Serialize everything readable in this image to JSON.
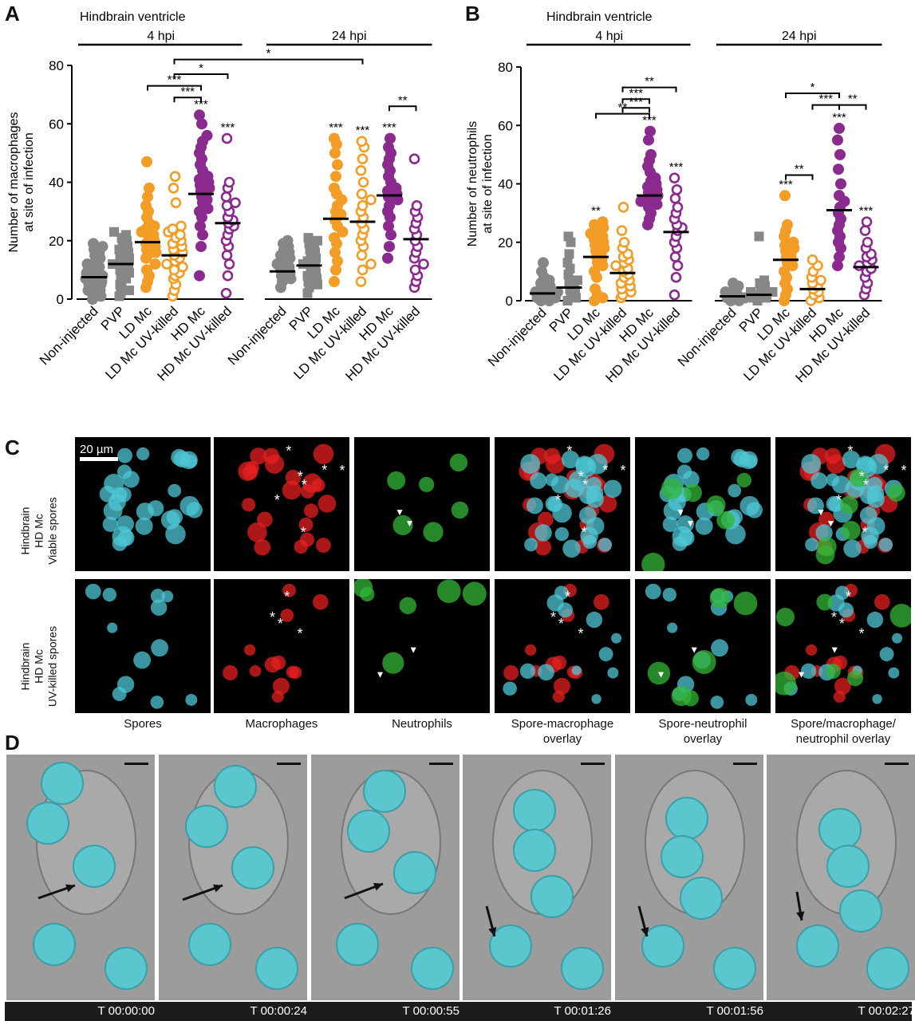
{
  "panels": {
    "a": "A",
    "b": "B",
    "c": "C",
    "d": "D"
  },
  "group_labels": {
    "hindbrain": "Hindbrain ventricle",
    "hpi4": "4 hpi",
    "hpi24": "24 hpi"
  },
  "chart_data": [
    {
      "type": "scatter",
      "panel": "A",
      "ylabel": "Number of macrophages\nat site of infection",
      "ylim": [
        0,
        80
      ],
      "yticks": [
        0,
        20,
        40,
        60,
        80
      ],
      "categories": [
        "Non-injected",
        "PVP",
        "LD Mc",
        "LD Mc UV-killed",
        "HD Mc",
        "HD Mc UV-killed",
        "Non-injected",
        "PVP",
        "LD Mc",
        "LD Mc UV-killed",
        "HD Mc",
        "HD Mc UV-killed"
      ],
      "colors": [
        "#878787",
        "#878787",
        "#f39c26",
        "#f39c26",
        "#8a2a8e",
        "#8a2a8e",
        "#878787",
        "#878787",
        "#f39c26",
        "#f39c26",
        "#8a2a8e",
        "#8a2a8e"
      ],
      "markers": [
        "circle",
        "square",
        "circle",
        "open-circle",
        "circle",
        "open-circle",
        "circle",
        "square",
        "circle",
        "open-circle",
        "circle",
        "open-circle"
      ],
      "means": [
        7.5,
        12,
        19.5,
        15,
        36,
        26,
        9.5,
        11.5,
        27.5,
        26.5,
        35.5,
        20.5
      ],
      "points": [
        [
          0,
          1,
          2,
          3,
          3,
          4,
          5,
          5,
          6,
          6,
          7,
          8,
          8,
          9,
          10,
          11,
          12,
          13,
          14,
          15,
          16,
          17,
          18,
          19
        ],
        [
          1,
          2,
          3,
          5,
          6,
          7,
          8,
          9,
          10,
          11,
          12,
          13,
          14,
          15,
          16,
          17,
          18,
          19,
          20,
          21,
          22,
          23
        ],
        [
          4,
          6,
          8,
          10,
          12,
          14,
          15,
          16,
          17,
          18,
          19,
          20,
          21,
          22,
          23,
          24,
          25,
          26,
          28,
          30,
          32,
          35,
          38,
          47
        ],
        [
          1,
          3,
          5,
          7,
          8,
          9,
          10,
          11,
          12,
          13,
          14,
          15,
          16,
          17,
          18,
          19,
          20,
          21,
          22,
          23,
          24,
          25,
          33,
          38,
          42
        ],
        [
          8,
          18,
          22,
          25,
          28,
          30,
          31,
          33,
          34,
          35,
          36,
          37,
          38,
          39,
          40,
          41,
          42,
          44,
          46,
          48,
          50,
          52,
          54,
          56,
          60,
          63
        ],
        [
          2,
          8,
          12,
          15,
          18,
          20,
          22,
          24,
          25,
          26,
          27,
          28,
          30,
          32,
          33,
          35,
          38,
          40,
          55
        ],
        [
          4,
          6,
          7,
          8,
          9,
          10,
          11,
          12,
          13,
          14,
          15,
          16,
          17,
          18,
          19,
          20
        ],
        [
          2,
          4,
          5,
          6,
          7,
          8,
          9,
          10,
          11,
          12,
          13,
          14,
          15,
          16,
          17,
          18,
          19,
          20,
          21
        ],
        [
          6,
          10,
          13,
          16,
          19,
          21,
          23,
          25,
          27,
          28,
          29,
          30,
          32,
          34,
          36,
          38,
          42,
          46,
          50,
          53,
          55
        ],
        [
          6,
          10,
          12,
          15,
          18,
          20,
          22,
          24,
          26,
          28,
          30,
          32,
          34,
          36,
          40,
          44,
          48,
          52,
          54
        ],
        [
          14,
          18,
          22,
          25,
          28,
          30,
          32,
          34,
          35,
          36,
          37,
          38,
          40,
          42,
          44,
          46,
          48,
          50,
          52,
          55
        ],
        [
          4,
          6,
          8,
          10,
          12,
          14,
          16,
          18,
          20,
          22,
          24,
          26,
          28,
          30,
          32,
          48
        ]
      ],
      "significance": [
        {
          "i": 4,
          "label": "***"
        },
        {
          "i": 5,
          "label": "***"
        },
        {
          "i": 8,
          "label": "***"
        },
        {
          "i": 9,
          "label": "***"
        },
        {
          "i": 10,
          "label": "***"
        }
      ],
      "brackets": [
        {
          "from": 2,
          "to": 4,
          "y": 73,
          "label": "***"
        },
        {
          "from": 3,
          "to": 4,
          "y": 69,
          "label": "***"
        },
        {
          "from": 3,
          "to": 5,
          "y": 77,
          "label": "*"
        },
        {
          "from": 3,
          "to": 9,
          "y": 82,
          "label": "*"
        },
        {
          "from": 10,
          "to": 11,
          "y": 66,
          "label": "**"
        }
      ]
    },
    {
      "type": "scatter",
      "panel": "B",
      "ylabel": "Number of neutrophils\nat site of infection",
      "ylim": [
        0,
        80
      ],
      "yticks": [
        0,
        20,
        40,
        60,
        80
      ],
      "categories": [
        "Non-injected",
        "PVP",
        "LD Mc",
        "LD Mc UV-killed",
        "HD Mc",
        "HD Mc UV-killed",
        "Non-injected",
        "PVP",
        "LD Mc",
        "LD Mc UV-killed",
        "HD Mc",
        "HD Mc UV-killed"
      ],
      "colors": [
        "#878787",
        "#878787",
        "#f39c26",
        "#f39c26",
        "#8a2a8e",
        "#8a2a8e",
        "#878787",
        "#878787",
        "#f39c26",
        "#f39c26",
        "#8a2a8e",
        "#8a2a8e"
      ],
      "markers": [
        "circle",
        "square",
        "circle",
        "open-circle",
        "circle",
        "open-circle",
        "circle",
        "square",
        "circle",
        "open-circle",
        "circle",
        "open-circle"
      ],
      "means": [
        2.5,
        4.5,
        15,
        9.5,
        36,
        23.5,
        1.5,
        2,
        14,
        4,
        31,
        11.5
      ],
      "points": [
        [
          0,
          0,
          1,
          1,
          2,
          2,
          3,
          3,
          4,
          5,
          6,
          7,
          8,
          10,
          13
        ],
        [
          0,
          1,
          2,
          3,
          4,
          5,
          6,
          7,
          9,
          11,
          13,
          16,
          20,
          22
        ],
        [
          0,
          1,
          2,
          4,
          8,
          10,
          12,
          13,
          14,
          15,
          16,
          17,
          18,
          19,
          20,
          21,
          22,
          23,
          24,
          25,
          26,
          27
        ],
        [
          1,
          2,
          3,
          4,
          5,
          6,
          7,
          8,
          9,
          10,
          11,
          12,
          13,
          14,
          15,
          16,
          18,
          20,
          24,
          32
        ],
        [
          26,
          28,
          30,
          32,
          33,
          34,
          35,
          36,
          37,
          38,
          39,
          40,
          41,
          42,
          44,
          46,
          48,
          50,
          55,
          58
        ],
        [
          2,
          8,
          12,
          15,
          18,
          20,
          22,
          24,
          25,
          26,
          28,
          30,
          32,
          35,
          38,
          42
        ],
        [
          0,
          0,
          1,
          1,
          2,
          2,
          3,
          4,
          5,
          6
        ],
        [
          0,
          1,
          1,
          2,
          2,
          3,
          3,
          4,
          5,
          6,
          7,
          22
        ],
        [
          0,
          2,
          4,
          6,
          8,
          10,
          12,
          13,
          14,
          15,
          16,
          17,
          18,
          19,
          20,
          22,
          24,
          26,
          36
        ],
        [
          0,
          1,
          2,
          3,
          4,
          5,
          6,
          7,
          8,
          10,
          12,
          14
        ],
        [
          12,
          15,
          18,
          20,
          22,
          24,
          26,
          28,
          30,
          32,
          34,
          36,
          40,
          45,
          50,
          55,
          59
        ],
        [
          2,
          4,
          6,
          8,
          10,
          11,
          12,
          13,
          14,
          15,
          16,
          18,
          20,
          24,
          27
        ]
      ],
      "significance": [
        {
          "i": 2,
          "label": "**"
        },
        {
          "i": 4,
          "label": "***"
        },
        {
          "i": 5,
          "label": "***"
        },
        {
          "i": 8,
          "label": "***"
        },
        {
          "i": 10,
          "label": "***"
        },
        {
          "i": 11,
          "label": "***"
        }
      ],
      "brackets": [
        {
          "from": 2,
          "to": 4,
          "y": 64,
          "label": "**"
        },
        {
          "from": 3,
          "to": 4,
          "y": 69,
          "label": "***"
        },
        {
          "from": 3,
          "to": 4,
          "y": 66,
          "label": "***"
        },
        {
          "from": 3,
          "to": 5,
          "y": 73,
          "label": "**"
        },
        {
          "from": 8,
          "to": 10,
          "y": 71,
          "label": "*"
        },
        {
          "from": 9,
          "to": 10,
          "y": 67,
          "label": "***"
        },
        {
          "from": 10,
          "to": 11,
          "y": 67,
          "label": "**"
        },
        {
          "from": 8,
          "to": 9,
          "y": 43,
          "label": "**"
        }
      ]
    }
  ],
  "panel_c": {
    "scale_bar": "20 µm",
    "rows": [
      "Hindbrain\nHD Mc\nViable spores",
      "Hindbrain\nHD Mc\nUV-killed spores"
    ],
    "columns": [
      "Spores",
      "Macrophages",
      "Neutrophils",
      "Spore-macrophage\noverlay",
      "Spore-neutrophil\noverlay",
      "Spore/macrophage/\nneutrophil overlay"
    ],
    "asterisk": "*",
    "arrowhead": "▼"
  },
  "panel_d": {
    "timestamps": [
      "T 00:00:00",
      "T 00:00:24",
      "T 00:00:55",
      "T 00:01:26",
      "T 00:01:56",
      "T 00:02:27"
    ]
  },
  "colors": {
    "gray": "#878787",
    "orange": "#f39c26",
    "purple": "#8a2a8e",
    "spore_cyan": "#4fc7d6",
    "macrophage_red": "#e62020",
    "neutrophil_green": "#33b537"
  }
}
